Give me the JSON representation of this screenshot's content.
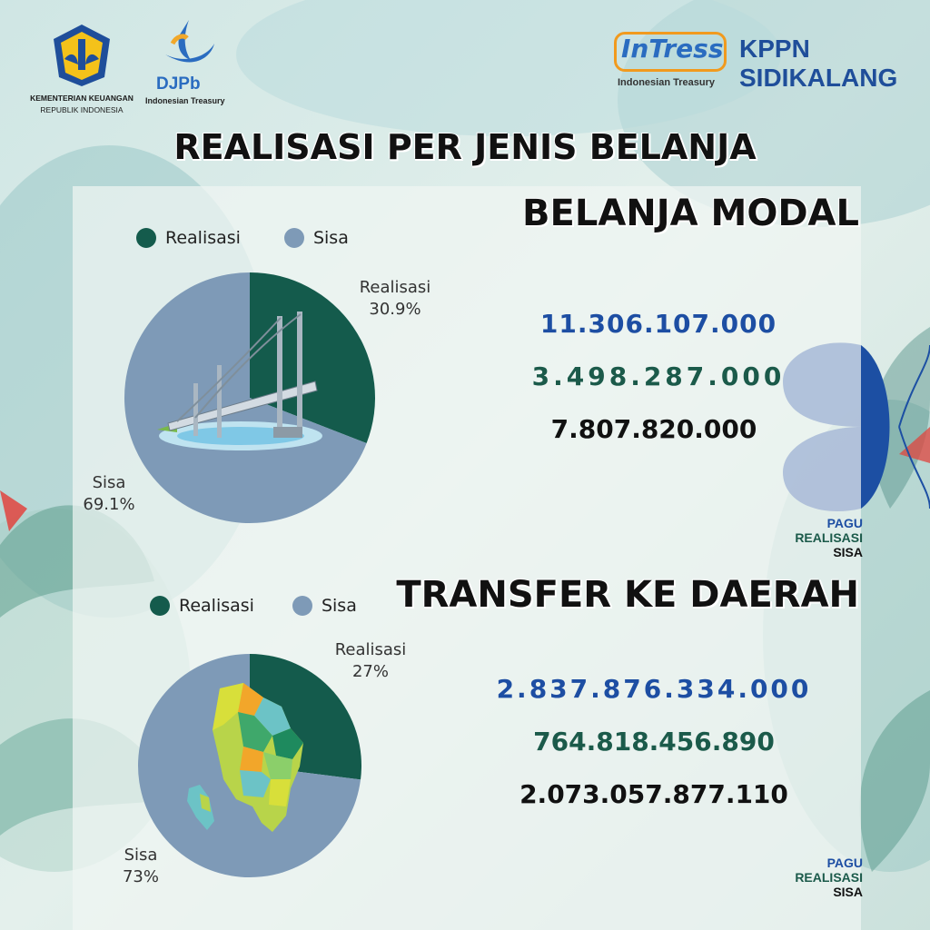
{
  "header": {
    "kemenkeu_line1": "KEMENTERIAN KEUANGAN",
    "kemenkeu_line2": "REPUBLIK INDONESIA",
    "djpb_name": "DJPb",
    "djpb_sub": "Indonesian Treasury",
    "intress_name": "InTress",
    "intress_sub": "Indonesian Treasury",
    "office_line1": "KPPN",
    "office_line2": "SIDIKALANG"
  },
  "title": "REALISASI PER JENIS BELANJA",
  "colors": {
    "realisasi": "#145b4c",
    "sisa": "#7e9ab7",
    "pagu_text": "#1d4ea3",
    "realisasi_text": "#1b5a4a",
    "sisa_text": "#111111"
  },
  "sections": [
    {
      "heading": "BELANJA MODAL",
      "legend": [
        "Realisasi",
        "Sisa"
      ],
      "pagu": "11.306.107.000",
      "realisasi": "3.498.287.000",
      "sisa": "7.807.820.000",
      "key_pagu": "PAGU",
      "key_realisasi": "REALISASI",
      "key_sisa": "SISA",
      "slice_labels": [
        {
          "name": "Realisasi",
          "pct": "30.9%"
        },
        {
          "name": "Sisa",
          "pct": "69.1%"
        }
      ],
      "image_icon": "bridge-illustration-icon"
    },
    {
      "heading": "TRANSFER KE DAERAH",
      "legend": [
        "Realisasi",
        "Sisa"
      ],
      "pagu": "2.837.876.334.000",
      "realisasi": "764.818.456.890",
      "sisa": "2.073.057.877.110",
      "key_pagu": "PAGU",
      "key_realisasi": "REALISASI",
      "key_sisa": "SISA",
      "slice_labels": [
        {
          "name": "Realisasi",
          "pct": "27%"
        },
        {
          "name": "Sisa",
          "pct": "73%"
        }
      ],
      "image_icon": "regional-map-icon"
    }
  ],
  "chart_data": [
    {
      "type": "pie",
      "title": "BELANJA MODAL",
      "categories": [
        "Realisasi",
        "Sisa"
      ],
      "values": [
        30.9,
        69.1
      ],
      "legend": "top"
    },
    {
      "type": "pie",
      "title": "TRANSFER KE DAERAH",
      "categories": [
        "Realisasi",
        "Sisa"
      ],
      "values": [
        27,
        73
      ],
      "legend": "top"
    }
  ]
}
